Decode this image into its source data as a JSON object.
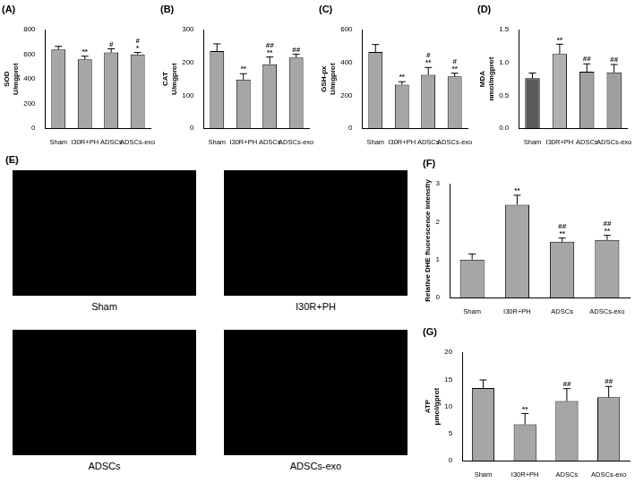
{
  "chart_data": [
    {
      "type": "bar",
      "title": "(A)",
      "y_label": [
        "SOD",
        "U/mgprot"
      ],
      "categories": [
        "Sham",
        "I30R+PH",
        "ADSCs",
        "ADSCs-exo"
      ],
      "values": [
        640,
        560,
        615,
        600
      ],
      "errors": [
        25,
        25,
        30,
        15
      ],
      "annotations": [
        null,
        [
          "**"
        ],
        [
          "#"
        ],
        [
          "#",
          "*"
        ]
      ],
      "colors": [
        "#a6a6a6",
        "#a6a6a6",
        "#a6a6a6",
        "#a6a6a6"
      ],
      "ylim": [
        0,
        800
      ],
      "yticks": [
        0,
        200,
        400,
        600,
        800
      ],
      "grid": false
    },
    {
      "type": "bar",
      "title": "(B)",
      "y_label": [
        "CAT",
        "U/mgprot"
      ],
      "categories": [
        "Sham",
        "I30R+PH",
        "ADSCs",
        "ADSCs-exo"
      ],
      "values": [
        235,
        148,
        195,
        215
      ],
      "errors": [
        22,
        18,
        22,
        10
      ],
      "annotations": [
        null,
        [
          "**"
        ],
        [
          "##",
          "**"
        ],
        [
          "##"
        ]
      ],
      "colors": [
        "#a6a6a6",
        "#a6a6a6",
        "#a6a6a6",
        "#a6a6a6"
      ],
      "ylim": [
        0,
        300
      ],
      "yticks": [
        0,
        100,
        200,
        300
      ],
      "grid": false
    },
    {
      "type": "bar",
      "title": "(C)",
      "y_label": [
        "GSH-px",
        "U/mgprot"
      ],
      "categories": [
        "Sham",
        "I30R+PH",
        "ADSCs",
        "ADSCs-exo"
      ],
      "values": [
        465,
        265,
        325,
        315
      ],
      "errors": [
        45,
        18,
        45,
        20
      ],
      "annotations": [
        null,
        [
          "**"
        ],
        [
          "#",
          "**"
        ],
        [
          "#",
          "**"
        ]
      ],
      "colors": [
        "#a6a6a6",
        "#a6a6a6",
        "#a6a6a6",
        "#a6a6a6"
      ],
      "ylim": [
        0,
        600
      ],
      "yticks": [
        0,
        200,
        400,
        600
      ],
      "grid": false
    },
    {
      "type": "bar",
      "title": "(D)",
      "y_label": [
        "MDA",
        "nmol/mgprot"
      ],
      "categories": [
        "Sham",
        "I30R+PH",
        "ADSCs",
        "ADSCs-exo"
      ],
      "values": [
        0.76,
        1.13,
        0.86,
        0.85
      ],
      "errors": [
        0.08,
        0.15,
        0.12,
        0.12
      ],
      "annotations": [
        null,
        [
          "**"
        ],
        [
          "##"
        ],
        [
          "##"
        ]
      ],
      "colors": [
        "#5a5a5a",
        "#b0b0b0",
        "#a0a0a0",
        "#a0a0a0"
      ],
      "ylim": [
        0,
        1.5
      ],
      "yticks": [
        {
          "value": 0,
          "label": "0.0"
        },
        {
          "value": 0.5,
          "label": "0.5"
        },
        {
          "value": 1,
          "label": "1.0"
        },
        {
          "value": 1.5,
          "label": "1.5"
        }
      ],
      "grid": false
    },
    {
      "type": "bar",
      "title": "(F)",
      "y_label": "Relative DHE fluorescence intensity",
      "categories": [
        "Sham",
        "I30R+PH",
        "ADSCs",
        "ADSCs-exo"
      ],
      "values": [
        1.0,
        2.45,
        1.47,
        1.52
      ],
      "errors": [
        0.15,
        0.25,
        0.1,
        0.12
      ],
      "annotations": [
        null,
        [
          "**"
        ],
        [
          "##",
          "**"
        ],
        [
          "##",
          "**"
        ]
      ],
      "colors": [
        "#a6a6a6",
        "#a6a6a6",
        "#a6a6a6",
        "#a6a6a6"
      ],
      "ylim": [
        0,
        3
      ],
      "yticks": [
        0,
        1,
        2,
        3
      ],
      "grid": false
    },
    {
      "type": "bar",
      "title": "(G)",
      "y_label": [
        "ATP",
        "μmol/gprot"
      ],
      "categories": [
        "Sham",
        "I30R+PH",
        "ADSCs",
        "ADSCs-exo"
      ],
      "values": [
        13.4,
        6.7,
        11.0,
        11.7
      ],
      "errors": [
        1.5,
        2.0,
        2.3,
        2.0
      ],
      "annotations": [
        null,
        [
          "**"
        ],
        [
          "##"
        ],
        [
          "##"
        ]
      ],
      "colors": [
        "#a6a6a6",
        "#a6a6a6",
        "#a6a6a6",
        "#a6a6a6"
      ],
      "ylim": [
        0,
        20
      ],
      "yticks": [
        0,
        5,
        10,
        15,
        20
      ],
      "grid": false
    }
  ],
  "image_panel": {
    "title": "(E)",
    "labels": [
      "Sham",
      "I30R+PH",
      "ADSCs",
      "ADSCs-exo"
    ]
  }
}
